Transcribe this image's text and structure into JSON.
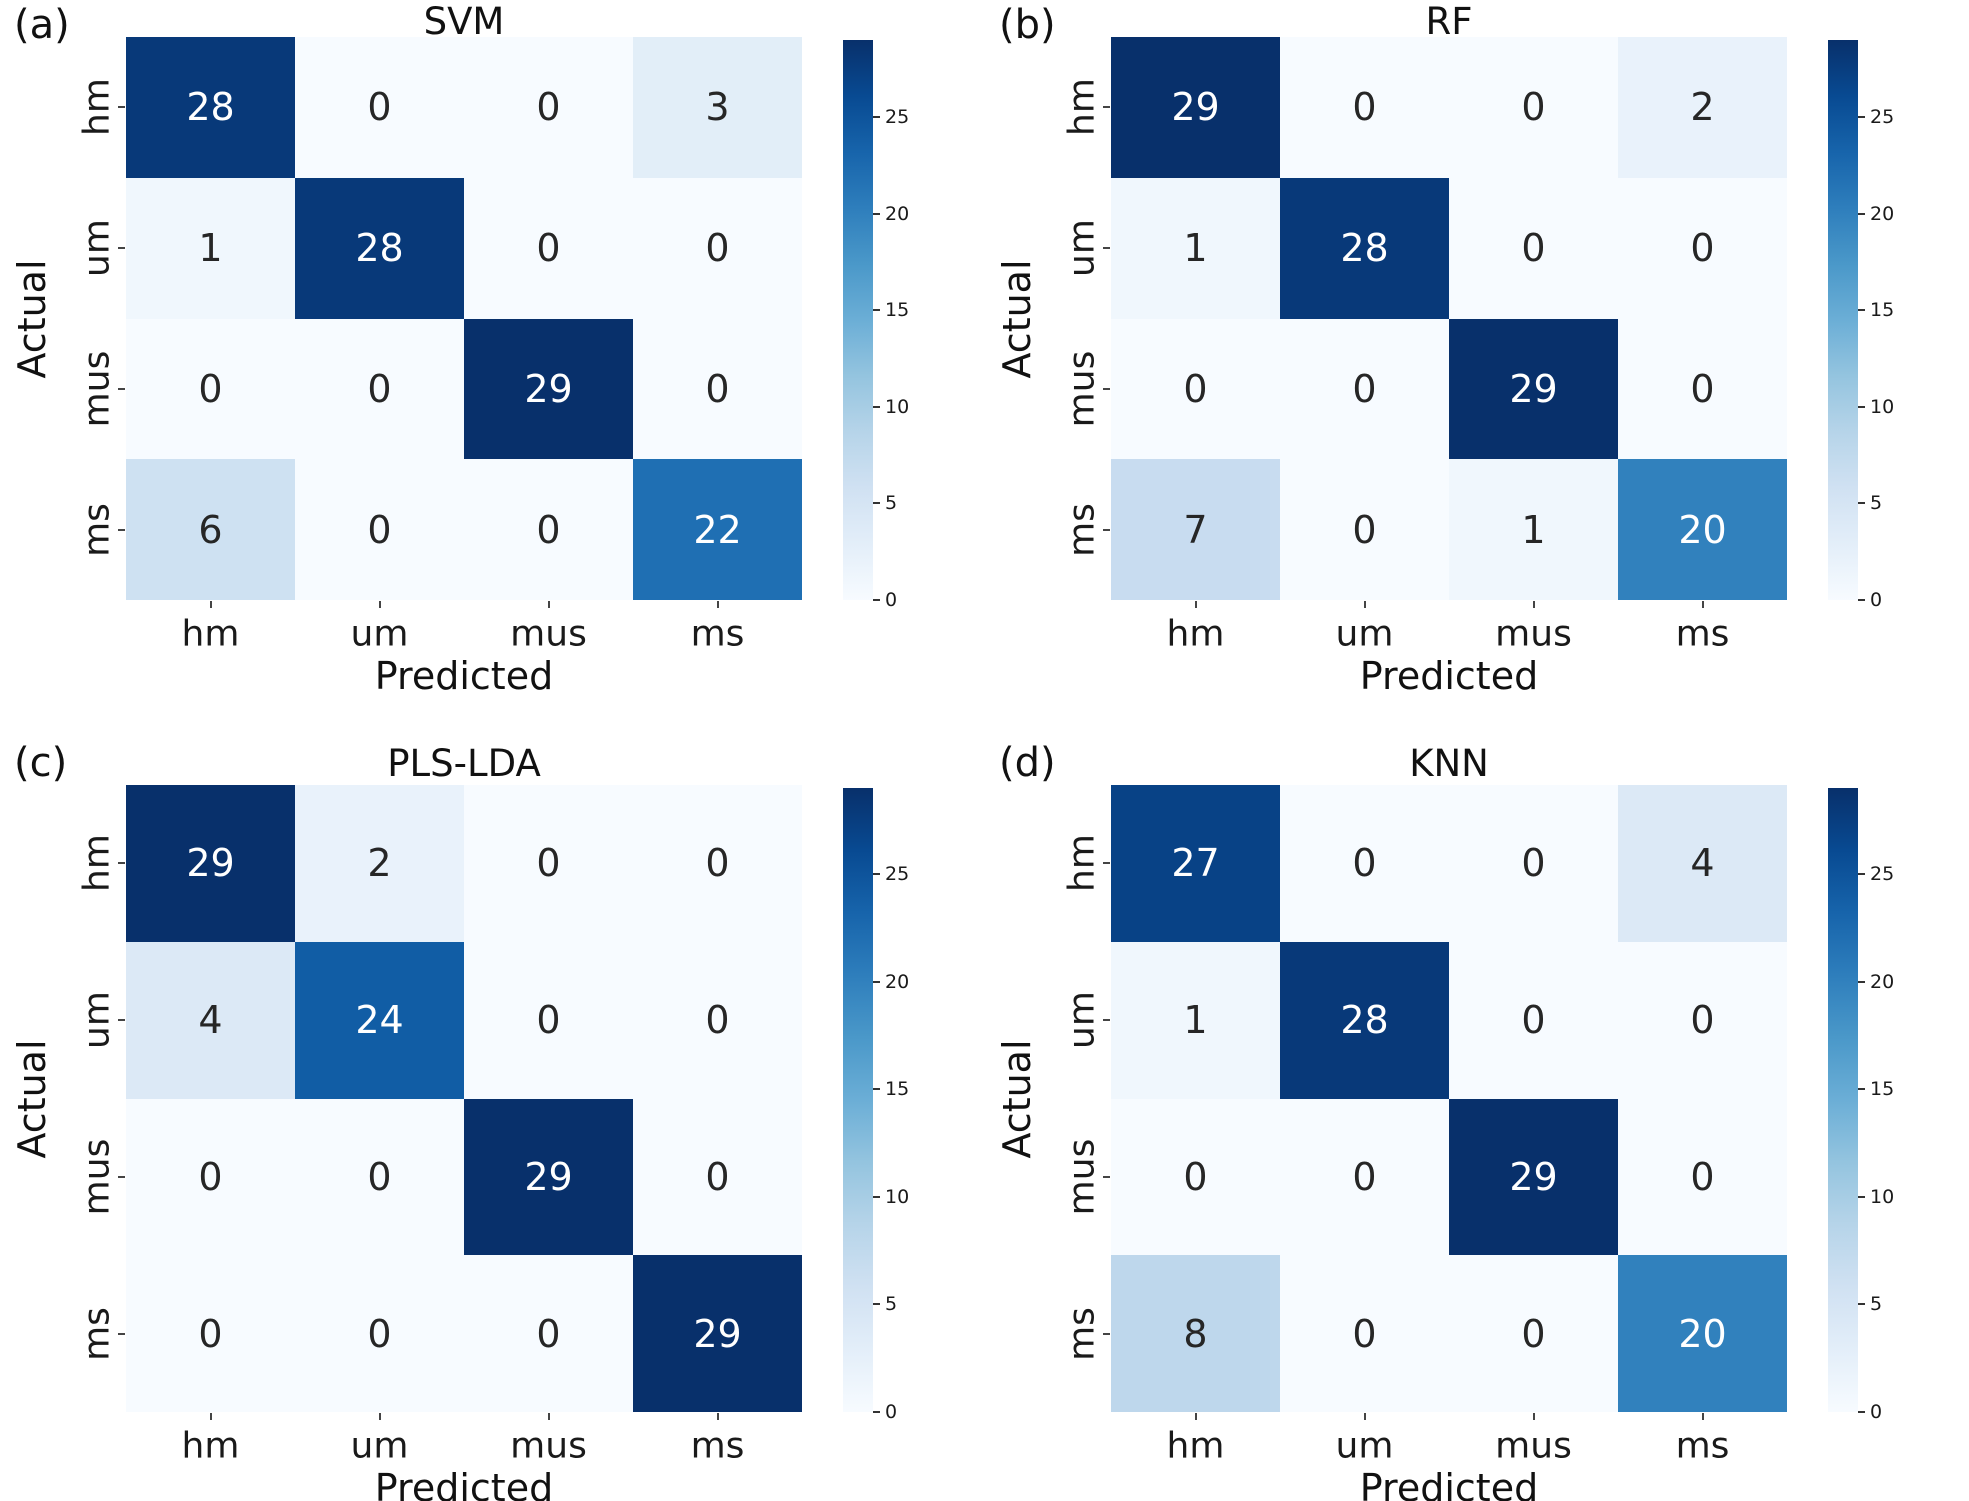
{
  "figure": {
    "background": "#ffffff",
    "colormap_name": "Blues",
    "colormap_anchors": [
      "#f7fbff",
      "#deebf7",
      "#c6dbef",
      "#9ecae1",
      "#6baed6",
      "#4292c6",
      "#2171b5",
      "#08519c",
      "#08306b"
    ],
    "annotation_dark_color": "#262626",
    "annotation_light_color": "#ffffff"
  },
  "chart_data": [
    {
      "type": "heatmap",
      "panel_label": "(a)",
      "title": "SVM",
      "xlabel": "Predicted",
      "ylabel": "Actual",
      "x_categories": [
        "hm",
        "um",
        "mus",
        "ms"
      ],
      "y_categories": [
        "hm",
        "um",
        "mus",
        "ms"
      ],
      "matrix": [
        [
          28,
          0,
          0,
          3
        ],
        [
          1,
          28,
          0,
          0
        ],
        [
          0,
          0,
          29,
          0
        ],
        [
          6,
          0,
          0,
          22
        ]
      ],
      "vmin": 0,
      "vmax": 29,
      "colorbar_ticks": [
        0,
        5,
        10,
        15,
        20,
        25
      ],
      "colormap": "Blues",
      "legend_position": "right-colorbar",
      "grid": false
    },
    {
      "type": "heatmap",
      "panel_label": "(b)",
      "title": "RF",
      "xlabel": "Predicted",
      "ylabel": "Actual",
      "x_categories": [
        "hm",
        "um",
        "mus",
        "ms"
      ],
      "y_categories": [
        "hm",
        "um",
        "mus",
        "ms"
      ],
      "matrix": [
        [
          29,
          0,
          0,
          2
        ],
        [
          1,
          28,
          0,
          0
        ],
        [
          0,
          0,
          29,
          0
        ],
        [
          7,
          0,
          1,
          20
        ]
      ],
      "vmin": 0,
      "vmax": 29,
      "colorbar_ticks": [
        0,
        5,
        10,
        15,
        20,
        25
      ],
      "colormap": "Blues",
      "legend_position": "right-colorbar",
      "grid": false
    },
    {
      "type": "heatmap",
      "panel_label": "(c)",
      "title": "PLS-LDA",
      "xlabel": "Predicted",
      "ylabel": "Actual",
      "x_categories": [
        "hm",
        "um",
        "mus",
        "ms"
      ],
      "y_categories": [
        "hm",
        "um",
        "mus",
        "ms"
      ],
      "matrix": [
        [
          29,
          2,
          0,
          0
        ],
        [
          4,
          24,
          0,
          0
        ],
        [
          0,
          0,
          29,
          0
        ],
        [
          0,
          0,
          0,
          29
        ]
      ],
      "vmin": 0,
      "vmax": 29,
      "colorbar_ticks": [
        0,
        5,
        10,
        15,
        20,
        25
      ],
      "colormap": "Blues",
      "legend_position": "right-colorbar",
      "grid": false
    },
    {
      "type": "heatmap",
      "panel_label": "(d)",
      "title": "KNN",
      "xlabel": "Predicted",
      "ylabel": "Actual",
      "x_categories": [
        "hm",
        "um",
        "mus",
        "ms"
      ],
      "y_categories": [
        "hm",
        "um",
        "mus",
        "ms"
      ],
      "matrix": [
        [
          27,
          0,
          0,
          4
        ],
        [
          1,
          28,
          0,
          0
        ],
        [
          0,
          0,
          29,
          0
        ],
        [
          8,
          0,
          0,
          20
        ]
      ],
      "vmin": 0,
      "vmax": 29,
      "colorbar_ticks": [
        0,
        5,
        10,
        15,
        20,
        25
      ],
      "colormap": "Blues",
      "legend_position": "right-colorbar",
      "grid": false
    }
  ]
}
